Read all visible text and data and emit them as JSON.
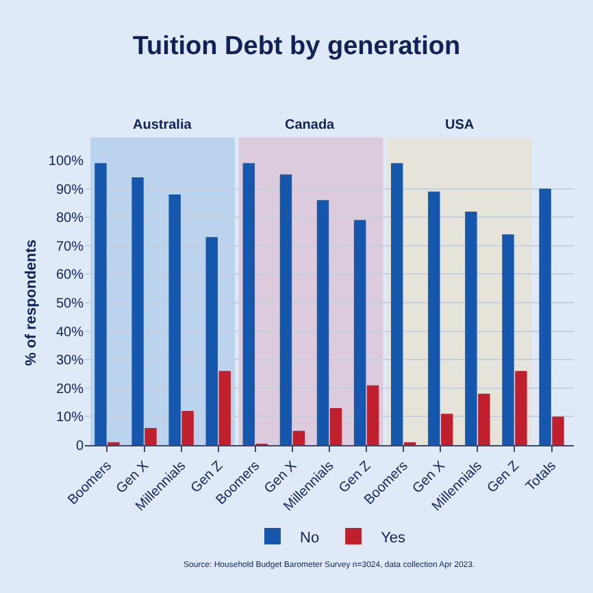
{
  "chart_data": {
    "type": "bar",
    "title": "Tuition Debt by generation",
    "ylabel": "% of respondents",
    "categories": [
      "Boomers",
      "Gen X",
      "Millennials",
      "Gen Z",
      "Boomers",
      "Gen X",
      "Millennials",
      "Gen Z",
      "Boomers",
      "Gen X",
      "Millennials",
      "Gen Z",
      "Totals"
    ],
    "series": [
      {
        "name": "No",
        "color": "#1457ad",
        "values": [
          99,
          94,
          88,
          73,
          99,
          95,
          86,
          79,
          99,
          89,
          82,
          74,
          90
        ]
      },
      {
        "name": "Yes",
        "color": "#c01f2d",
        "values": [
          1,
          6,
          12,
          26,
          0.3,
          5,
          13,
          21,
          1,
          11,
          18,
          26,
          10
        ]
      }
    ],
    "ylim": [
      0,
      100
    ],
    "yticks": [
      {
        "value": 0,
        "label": "0"
      },
      {
        "value": 10,
        "label": "10%"
      },
      {
        "value": 20,
        "label": "20%"
      },
      {
        "value": 30,
        "label": "30%"
      },
      {
        "value": 40,
        "label": "40%"
      },
      {
        "value": 50,
        "label": "50%"
      },
      {
        "value": 60,
        "label": "60%"
      },
      {
        "value": 70,
        "label": "70%"
      },
      {
        "value": 80,
        "label": "80%"
      },
      {
        "value": 90,
        "label": "90%"
      },
      {
        "value": 100,
        "label": "100%"
      }
    ],
    "grid": "y",
    "legend": "bottom",
    "annotations": [
      "Australia",
      "Canada",
      "USA",
      "Source: Household Budget Barometer Survey n=3024, data collection Apr 2023."
    ]
  }
}
